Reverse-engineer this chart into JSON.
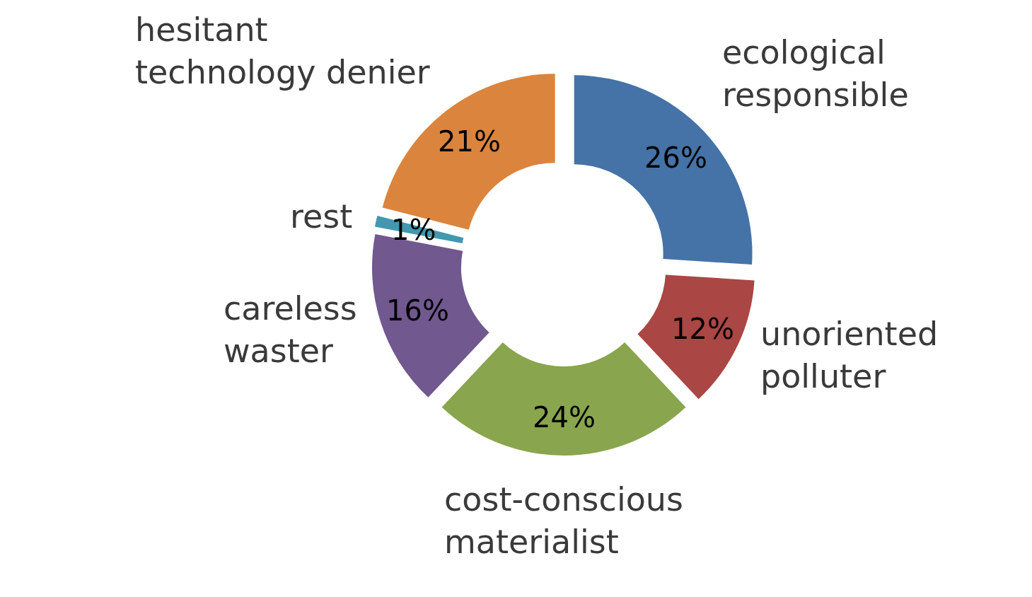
{
  "chart_data": {
    "type": "donut",
    "categories": [
      "ecological responsible",
      "unoriented polluter",
      "cost-conscious materialist",
      "careless waster",
      "rest",
      "hesitant technology denier"
    ],
    "values": [
      26,
      12,
      24,
      16,
      1,
      21
    ],
    "value_labels": [
      "26%",
      "12%",
      "24%",
      "16%",
      "1%",
      "21%"
    ],
    "colors": [
      "#4573a7",
      "#aa4643",
      "#89a54e",
      "#71588f",
      "#4198af",
      "#db843d"
    ],
    "legend": false
  }
}
